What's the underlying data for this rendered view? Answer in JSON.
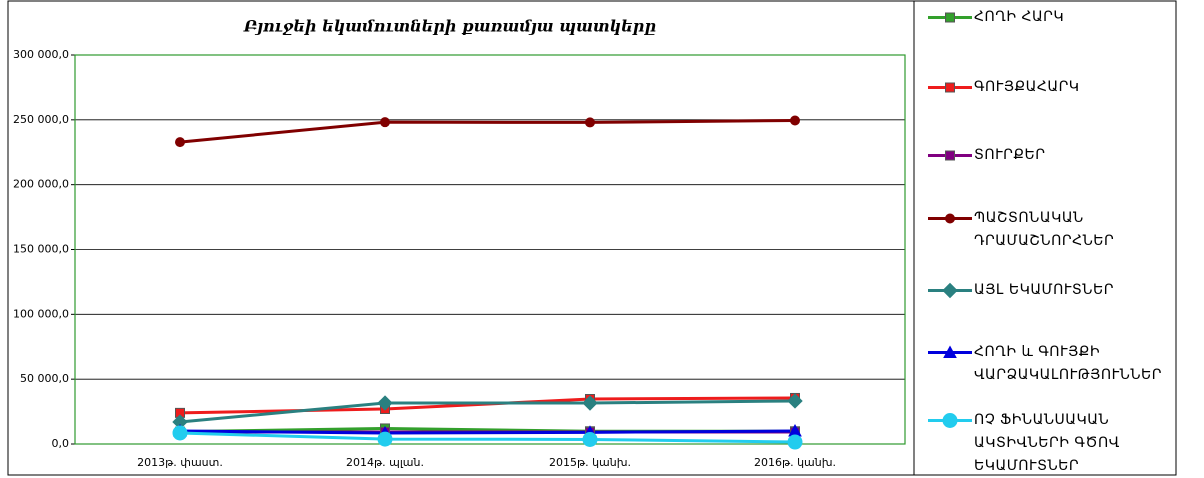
{
  "chart_data": {
    "type": "line",
    "title": "Բյուջեի եկամուտների քառամյա պատկերը",
    "categories": [
      "2013թ. փաստ.",
      "2014թ. պլան.",
      "2015թ. կանխ.",
      "2016թ. կանխ."
    ],
    "ylim": [
      0,
      300000
    ],
    "yticks": [
      {
        "value": 0,
        "label": "0,0"
      },
      {
        "value": 50000,
        "label": "50 000,0"
      },
      {
        "value": 100000,
        "label": "100 000,0"
      },
      {
        "value": 150000,
        "label": "150 000,0"
      },
      {
        "value": 200000,
        "label": "200 000,0"
      },
      {
        "value": 250000,
        "label": "250 000,0"
      },
      {
        "value": 300000,
        "label": "300 000,0"
      }
    ],
    "grid": true,
    "legend": "right",
    "series": [
      {
        "name": "ՀՈՂԻ ՀԱՐԿ",
        "color": "#33a02c",
        "marker": "square",
        "values": [
          9500,
          12000,
          9800,
          9800
        ]
      },
      {
        "name": "ԳՈՒՅՔԱՀԱՐԿ",
        "color": "#ee1c1c",
        "marker": "square",
        "values": [
          24000,
          27000,
          34700,
          35500
        ]
      },
      {
        "name": "ՏՈՒՐՔԵՐ",
        "color": "#800080",
        "marker": "square",
        "values": [
          9300,
          9300,
          9300,
          9300
        ]
      },
      {
        "name": "ՊԱՇՏՈՆԱԿԱՆ ԴՐԱՄԱՇՆՈՐՀՆԵՐ",
        "color": "#800000",
        "marker": "circle",
        "values": [
          232800,
          248200,
          248000,
          249500
        ]
      },
      {
        "name": "ԱՅԼ ԵԿԱՄՈՒՏՆԵՐ",
        "color": "#2a8080",
        "marker": "diamond",
        "values": [
          17000,
          31600,
          31600,
          33200
        ]
      },
      {
        "name": "ՀՈՂԻ և ԳՈՒՅՔԻ ՎԱՐՁԱԿԱԼՈՒԹՅՈՒՆՆԵՐ",
        "color": "#0000dd",
        "marker": "triangle",
        "values": [
          10000,
          8500,
          9000,
          10000
        ]
      },
      {
        "name": "ՈՉ ՖԻՆԱՆՍԱԿԱՆ ԱԿՏԻՎՆԵՐԻ ԳԾՈՎ ԵԿԱՄՈՒՏՆԵՐ",
        "color": "#22ccee",
        "marker": "bigcircle",
        "values": [
          8500,
          3800,
          3500,
          1500
        ]
      }
    ]
  }
}
